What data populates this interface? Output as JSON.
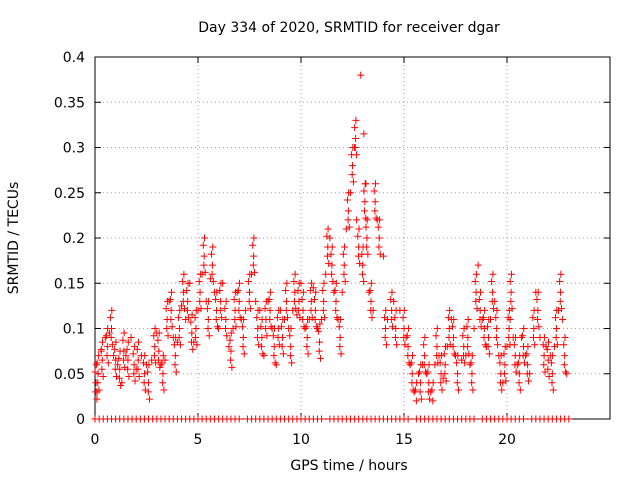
{
  "chart_data": {
    "type": "scatter",
    "title": "Day 334 of 2020, SRMTID for receiver dgar",
    "xlabel": "GPS time / hours",
    "ylabel": "SRMTID / TECUs",
    "xlim": [
      0,
      25
    ],
    "ylim": [
      0,
      0.4
    ],
    "xticks": [
      0,
      5,
      10,
      15,
      20
    ],
    "yticks": [
      0,
      0.05,
      0.1,
      0.15,
      0.2,
      0.25,
      0.3,
      0.35,
      0.4
    ],
    "ytick_labels": [
      "0",
      "0.05",
      "0.1",
      "0.15",
      "0.2",
      "0.25",
      "0.3",
      "0.35",
      "0.4"
    ],
    "grid": true,
    "marker": "+",
    "color": "#ff0000",
    "series": [
      {
        "name": "SRMTID",
        "points": [
          [
            0.05,
            0.04
          ],
          [
            0.1,
            0.03
          ],
          [
            0.15,
            0.05
          ],
          [
            0.3,
            0.075
          ],
          [
            0.35,
            0.065
          ],
          [
            0.5,
            0.09
          ],
          [
            0.6,
            0.08
          ],
          [
            0.7,
            0.095
          ],
          [
            0.8,
            0.1
          ],
          [
            0.9,
            0.07
          ],
          [
            1.0,
            0.065
          ],
          [
            1.1,
            0.06
          ],
          [
            1.2,
            0.055
          ],
          [
            1.3,
            0.04
          ],
          [
            1.4,
            0.075
          ],
          [
            1.5,
            0.07
          ],
          [
            1.6,
            0.065
          ],
          [
            1.75,
            0.09
          ],
          [
            1.9,
            0.06
          ],
          [
            2.0,
            0.055
          ],
          [
            2.1,
            0.065
          ],
          [
            2.25,
            0.07
          ],
          [
            2.4,
            0.05
          ],
          [
            2.5,
            0.06
          ],
          [
            2.6,
            0.04
          ],
          [
            2.75,
            0.065
          ],
          [
            2.9,
            0.08
          ],
          [
            3.0,
            0.095
          ],
          [
            3.1,
            0.075
          ],
          [
            3.2,
            0.06
          ],
          [
            3.3,
            0.05
          ],
          [
            3.4,
            0.065
          ],
          [
            3.5,
            0.11
          ],
          [
            3.6,
            0.13
          ],
          [
            3.7,
            0.12
          ],
          [
            3.8,
            0.09
          ],
          [
            3.9,
            0.07
          ],
          [
            4.0,
            0.085
          ],
          [
            4.1,
            0.1
          ],
          [
            4.2,
            0.125
          ],
          [
            4.3,
            0.14
          ],
          [
            4.4,
            0.11
          ],
          [
            4.5,
            0.13
          ],
          [
            4.6,
            0.15
          ],
          [
            4.7,
            0.095
          ],
          [
            4.8,
            0.085
          ],
          [
            4.9,
            0.1
          ],
          [
            5.0,
            0.12
          ],
          [
            5.1,
            0.14
          ],
          [
            5.2,
            0.16
          ],
          [
            5.3,
            0.18
          ],
          [
            5.4,
            0.13
          ],
          [
            5.5,
            0.11
          ],
          [
            5.6,
            0.155
          ],
          [
            5.7,
            0.17
          ],
          [
            5.8,
            0.14
          ],
          [
            5.9,
            0.12
          ],
          [
            6.0,
            0.1
          ],
          [
            6.1,
            0.13
          ],
          [
            6.2,
            0.15
          ],
          [
            6.35,
            0.11
          ],
          [
            6.5,
            0.08
          ],
          [
            6.6,
            0.075
          ],
          [
            6.7,
            0.1
          ],
          [
            6.8,
            0.12
          ],
          [
            6.9,
            0.14
          ],
          [
            7.0,
            0.13
          ],
          [
            7.1,
            0.11
          ],
          [
            7.2,
            0.09
          ],
          [
            7.3,
            0.12
          ],
          [
            7.5,
            0.14
          ],
          [
            7.6,
            0.16
          ],
          [
            7.7,
            0.18
          ],
          [
            7.8,
            0.13
          ],
          [
            7.9,
            0.1
          ],
          [
            8.0,
            0.12
          ],
          [
            8.1,
            0.09
          ],
          [
            8.2,
            0.07
          ],
          [
            8.3,
            0.11
          ],
          [
            8.4,
            0.13
          ],
          [
            8.5,
            0.12
          ],
          [
            8.6,
            0.1
          ],
          [
            8.7,
            0.08
          ],
          [
            8.8,
            0.06
          ],
          [
            8.9,
            0.1
          ],
          [
            9.0,
            0.12
          ],
          [
            9.1,
            0.09
          ],
          [
            9.2,
            0.11
          ],
          [
            9.3,
            0.13
          ],
          [
            9.4,
            0.1
          ],
          [
            9.5,
            0.08
          ],
          [
            9.6,
            0.12
          ],
          [
            9.7,
            0.14
          ],
          [
            9.8,
            0.115
          ],
          [
            9.9,
            0.13
          ],
          [
            10.0,
            0.15
          ],
          [
            10.1,
            0.12
          ],
          [
            10.2,
            0.1
          ],
          [
            10.3,
            0.09
          ],
          [
            10.4,
            0.11
          ],
          [
            10.5,
            0.13
          ],
          [
            10.6,
            0.145
          ],
          [
            10.7,
            0.12
          ],
          [
            10.8,
            0.1
          ],
          [
            10.9,
            0.085
          ],
          [
            11.0,
            0.11
          ],
          [
            11.1,
            0.13
          ],
          [
            11.2,
            0.16
          ],
          [
            11.3,
            0.19
          ],
          [
            11.4,
            0.2
          ],
          [
            11.5,
            0.17
          ],
          [
            11.6,
            0.14
          ],
          [
            11.7,
            0.13
          ],
          [
            11.8,
            0.11
          ],
          [
            11.9,
            0.09
          ],
          [
            12.0,
            0.14
          ],
          [
            12.1,
            0.17
          ],
          [
            12.2,
            0.21
          ],
          [
            12.3,
            0.23
          ],
          [
            12.4,
            0.25
          ],
          [
            12.5,
            0.28
          ],
          [
            12.6,
            0.3
          ],
          [
            12.65,
            0.31
          ],
          [
            12.7,
            0.22
          ],
          [
            12.8,
            0.19
          ],
          [
            12.9,
            0.38
          ],
          [
            13.0,
            0.17
          ],
          [
            13.05,
            0.315
          ],
          [
            13.1,
            0.24
          ],
          [
            13.15,
            0.26
          ],
          [
            13.2,
            0.2
          ],
          [
            13.3,
            0.14
          ],
          [
            13.4,
            0.13
          ],
          [
            13.5,
            0.12
          ],
          [
            13.6,
            0.24
          ],
          [
            13.7,
            0.22
          ],
          [
            13.8,
            0.2
          ],
          [
            14.0,
            0.18
          ],
          [
            14.1,
            0.1
          ],
          [
            14.2,
            0.11
          ],
          [
            14.4,
            0.12
          ],
          [
            14.5,
            0.13
          ],
          [
            14.6,
            0.1
          ],
          [
            14.8,
            0.12
          ],
          [
            15.0,
            0.1
          ],
          [
            15.1,
            0.09
          ],
          [
            15.2,
            0.08
          ],
          [
            15.3,
            0.06
          ],
          [
            15.4,
            0.05
          ],
          [
            15.5,
            0.03
          ],
          [
            15.6,
            0.02
          ],
          [
            15.7,
            0.05
          ],
          [
            15.8,
            0.04
          ],
          [
            15.9,
            0.06
          ],
          [
            16.0,
            0.07
          ],
          [
            16.1,
            0.05
          ],
          [
            16.2,
            0.04
          ],
          [
            16.3,
            0.03
          ],
          [
            16.4,
            0.02
          ],
          [
            16.5,
            0.06
          ],
          [
            16.6,
            0.08
          ],
          [
            16.7,
            0.07
          ],
          [
            16.8,
            0.05
          ],
          [
            16.9,
            0.045
          ],
          [
            17.0,
            0.06
          ],
          [
            17.1,
            0.08
          ],
          [
            17.2,
            0.1
          ],
          [
            17.3,
            0.11
          ],
          [
            17.4,
            0.09
          ],
          [
            17.5,
            0.07
          ],
          [
            17.6,
            0.05
          ],
          [
            17.8,
            0.065
          ],
          [
            17.9,
            0.08
          ],
          [
            18.0,
            0.07
          ],
          [
            18.1,
            0.09
          ],
          [
            18.2,
            0.06
          ],
          [
            18.3,
            0.05
          ],
          [
            18.4,
            0.1
          ],
          [
            18.5,
            0.14
          ],
          [
            18.6,
            0.17
          ],
          [
            18.7,
            0.12
          ],
          [
            18.8,
            0.11
          ],
          [
            18.9,
            0.1
          ],
          [
            19.0,
            0.08
          ],
          [
            19.1,
            0.09
          ],
          [
            19.2,
            0.11
          ],
          [
            19.3,
            0.14
          ],
          [
            19.4,
            0.13
          ],
          [
            19.5,
            0.1
          ],
          [
            19.6,
            0.07
          ],
          [
            19.7,
            0.05
          ],
          [
            19.8,
            0.04
          ],
          [
            19.9,
            0.06
          ],
          [
            20.0,
            0.08
          ],
          [
            20.1,
            0.1
          ],
          [
            20.15,
            0.11
          ],
          [
            20.2,
            0.14
          ],
          [
            20.3,
            0.09
          ],
          [
            20.4,
            0.07
          ],
          [
            20.5,
            0.06
          ],
          [
            20.6,
            0.05
          ],
          [
            20.7,
            0.09
          ],
          [
            20.8,
            0.08
          ],
          [
            20.9,
            0.07
          ],
          [
            21.0,
            0.06
          ],
          [
            21.1,
            0.05
          ],
          [
            21.3,
            0.1
          ],
          [
            21.4,
            0.14
          ],
          [
            21.5,
            0.12
          ],
          [
            21.6,
            0.09
          ],
          [
            21.8,
            0.07
          ],
          [
            21.9,
            0.08
          ],
          [
            22.0,
            0.065
          ],
          [
            22.1,
            0.07
          ],
          [
            22.2,
            0.05
          ],
          [
            22.3,
            0.08
          ],
          [
            22.4,
            0.1
          ],
          [
            22.5,
            0.12
          ],
          [
            22.6,
            0.14
          ],
          [
            22.7,
            0.11
          ],
          [
            22.8,
            0.07
          ],
          [
            22.9,
            0.05
          ]
        ]
      },
      {
        "name": "zero baseline",
        "x_start": 0,
        "x_end": 23,
        "x_step": 0.2,
        "y": 0,
        "gaps": [
          [
            7.1,
            7.4
          ],
          [
            9.0,
            9.2
          ],
          [
            11.1,
            11.3
          ],
          [
            15.2,
            15.4
          ],
          [
            18.5,
            18.7
          ],
          [
            20.8,
            21.0
          ]
        ]
      }
    ]
  }
}
